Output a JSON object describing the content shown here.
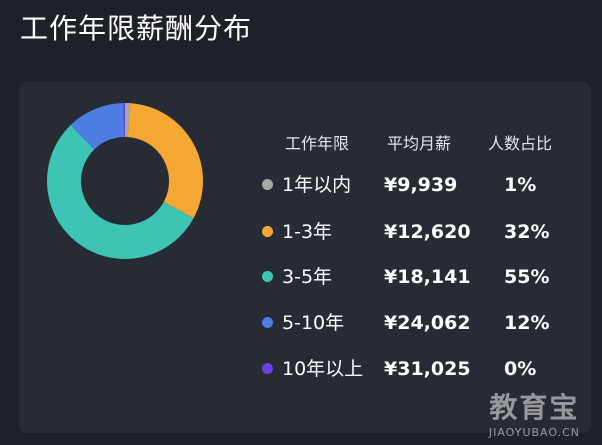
{
  "page": {
    "title": "工作年限薪酬分布"
  },
  "table": {
    "headers": {
      "years": "工作年限",
      "salary": "平均月薪",
      "share": "人数占比"
    }
  },
  "chart_data": {
    "type": "pie",
    "title": "",
    "hole": true,
    "legend": "right",
    "categories": [
      "1年以内",
      "1-3年",
      "3-5年",
      "5-10年",
      "10年以上"
    ],
    "salaries": [
      "¥9,939",
      "¥12,620",
      "¥18,141",
      "¥24,062",
      "¥31,025"
    ],
    "percent_labels": [
      "1%",
      "32%",
      "55%",
      "12%",
      "0%"
    ],
    "values": [
      1,
      32,
      55,
      12,
      0.3
    ],
    "colors": [
      "#a7a7a7",
      "#f5a733",
      "#3dc4b5",
      "#4d7de3",
      "#6a3fe0"
    ]
  },
  "watermark": {
    "main": "教育宝",
    "sub": "JIAOYUBAO.CN"
  }
}
